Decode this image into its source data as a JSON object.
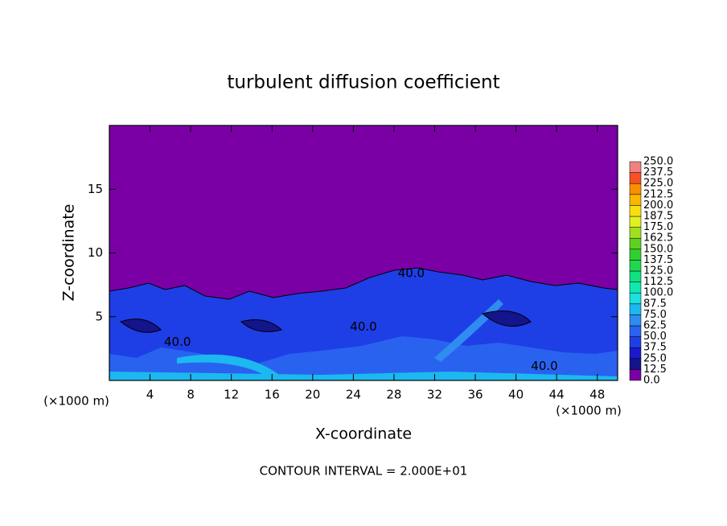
{
  "chart_data": {
    "type": "contour",
    "title": "turbulent diffusion coefficient",
    "xlabel": "X-coordinate",
    "ylabel": "Z-coordinate",
    "x_unit": "(×1000 m)",
    "y_unit": "(×1000 m)",
    "xlim": [
      0,
      50
    ],
    "ylim": [
      0,
      20
    ],
    "xticks": [
      4,
      8,
      12,
      16,
      20,
      24,
      28,
      32,
      36,
      40,
      44,
      48
    ],
    "yticks": [
      5,
      10,
      15
    ],
    "contour_labels": [
      {
        "text": "40.0",
        "x": 29.7,
        "y": 8.4
      },
      {
        "text": "40.0",
        "x": 25,
        "y": 4.2
      },
      {
        "text": "40.0",
        "x": 6.7,
        "y": 3.0
      },
      {
        "text": "40.0",
        "x": 42.8,
        "y": 1.1
      }
    ],
    "colorbar": {
      "ticks": [
        {
          "value": 0,
          "label": "0.0"
        },
        12.5,
        {
          "value": 25,
          "label": "25.0"
        },
        37.5,
        {
          "value": 50,
          "label": "50.0"
        },
        62.5,
        {
          "value": 75,
          "label": "75.0"
        },
        87.5,
        {
          "value": 100,
          "label": "100.0"
        },
        112.5,
        {
          "value": 125,
          "label": "125.0"
        },
        137.5,
        {
          "value": 150,
          "label": "150.0"
        },
        162.5,
        {
          "value": 175,
          "label": "175.0"
        },
        187.5,
        {
          "value": 200,
          "label": "200.0"
        },
        212.5,
        {
          "value": 225,
          "label": "225.0"
        },
        237.5,
        {
          "value": 250,
          "label": "250.0"
        }
      ],
      "colors": [
        "#7a00a6",
        "#14148c",
        "#1a1acc",
        "#1e3ee6",
        "#2a62f0",
        "#2f8cf0",
        "#1cb8f0",
        "#1ce0e0",
        "#10e8b0",
        "#10e080",
        "#20d850",
        "#30d030",
        "#60d020",
        "#a0e020",
        "#e0f020",
        "#f8e010",
        "#f8b800",
        "#f89000",
        "#f85020",
        "#f08080"
      ]
    },
    "footnote": "CONTOUR INTERVAL = 2.000E+01"
  }
}
